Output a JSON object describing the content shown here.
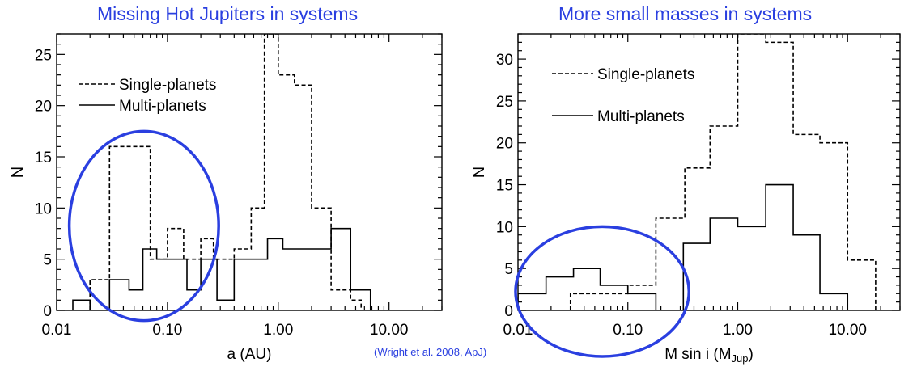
{
  "titles": {
    "left": "Missing Hot Jupiters in systems",
    "right": "More small masses in systems"
  },
  "citation": "(Wright et al. 2008, ApJ)",
  "colors": {
    "title": "#2a3fe0",
    "ellipse": "#2a3fe0",
    "axis": "#000000"
  },
  "chart_data": [
    {
      "type": "step-histogram",
      "xscale": "log",
      "xlabel": "a (AU)",
      "ylabel": "N",
      "xlim": [
        0.01,
        30
      ],
      "ylim": [
        0,
        27
      ],
      "xticks": [
        {
          "value": 0.01,
          "label": "0.01"
        },
        {
          "value": 0.1,
          "label": "0.10"
        },
        {
          "value": 1,
          "label": "1.00"
        },
        {
          "value": 10,
          "label": "10.00"
        }
      ],
      "yticks": [
        0,
        5,
        10,
        15,
        20,
        25
      ],
      "legend": [
        "Single-planets",
        "Multi-planets"
      ],
      "highlight": {
        "shape": "ellipse",
        "x_range": [
          0.013,
          0.29
        ],
        "y_range": [
          -1,
          17.5
        ]
      },
      "series": [
        {
          "name": "Single-planets",
          "style": "dashed",
          "edges": [
            0.02,
            0.03,
            0.07,
            0.1,
            0.14,
            0.2,
            0.26,
            0.4,
            0.57,
            0.75,
            1.0,
            1.4,
            2.0,
            3.0,
            4.5,
            5.6
          ],
          "values": [
            3,
            16,
            5,
            8,
            5,
            7,
            5,
            6,
            10,
            27,
            23,
            22,
            10,
            2,
            1
          ]
        },
        {
          "name": "Multi-planets",
          "style": "solid",
          "edges": [
            0.014,
            0.02,
            0.03,
            0.045,
            0.06,
            0.08,
            0.1,
            0.15,
            0.2,
            0.28,
            0.4,
            0.56,
            0.8,
            1.1,
            1.6,
            3.0,
            4.5,
            6.8
          ],
          "values": [
            1,
            0,
            3,
            2,
            6,
            5,
            5,
            2,
            5,
            1,
            5,
            5,
            7,
            6,
            6,
            8,
            2
          ]
        }
      ]
    },
    {
      "type": "step-histogram",
      "xscale": "log",
      "xlabel": "M sin i (MJup)",
      "ylabel": "N",
      "xlim": [
        0.01,
        30
      ],
      "ylim": [
        0,
        33
      ],
      "xticks": [
        {
          "value": 0.01,
          "label": "0.01"
        },
        {
          "value": 0.1,
          "label": "0.10"
        },
        {
          "value": 1,
          "label": "1.00"
        },
        {
          "value": 10,
          "label": "10.00"
        }
      ],
      "yticks": [
        0,
        5,
        10,
        15,
        20,
        25,
        30
      ],
      "legend": [
        "Single-planets",
        "Multi-planets"
      ],
      "highlight": {
        "shape": "ellipse",
        "x_range": [
          0.0095,
          0.36
        ],
        "y_range": [
          -5.5,
          10
        ]
      },
      "series": [
        {
          "name": "Single-planets",
          "style": "dashed",
          "edges": [
            0.03,
            0.1,
            0.18,
            0.33,
            0.56,
            1.0,
            1.8,
            3.2,
            5.6,
            10,
            18
          ],
          "values": [
            2,
            3,
            11,
            17,
            22,
            33,
            32,
            21,
            20,
            6
          ]
        },
        {
          "name": "Multi-planets",
          "style": "solid",
          "edges": [
            0.01,
            0.018,
            0.032,
            0.056,
            0.1,
            0.18,
            0.32,
            0.56,
            1.0,
            1.8,
            3.2,
            5.6,
            10
          ],
          "values": [
            2,
            4,
            5,
            3,
            2,
            0,
            8,
            11,
            10,
            15,
            9,
            2
          ]
        }
      ]
    }
  ]
}
